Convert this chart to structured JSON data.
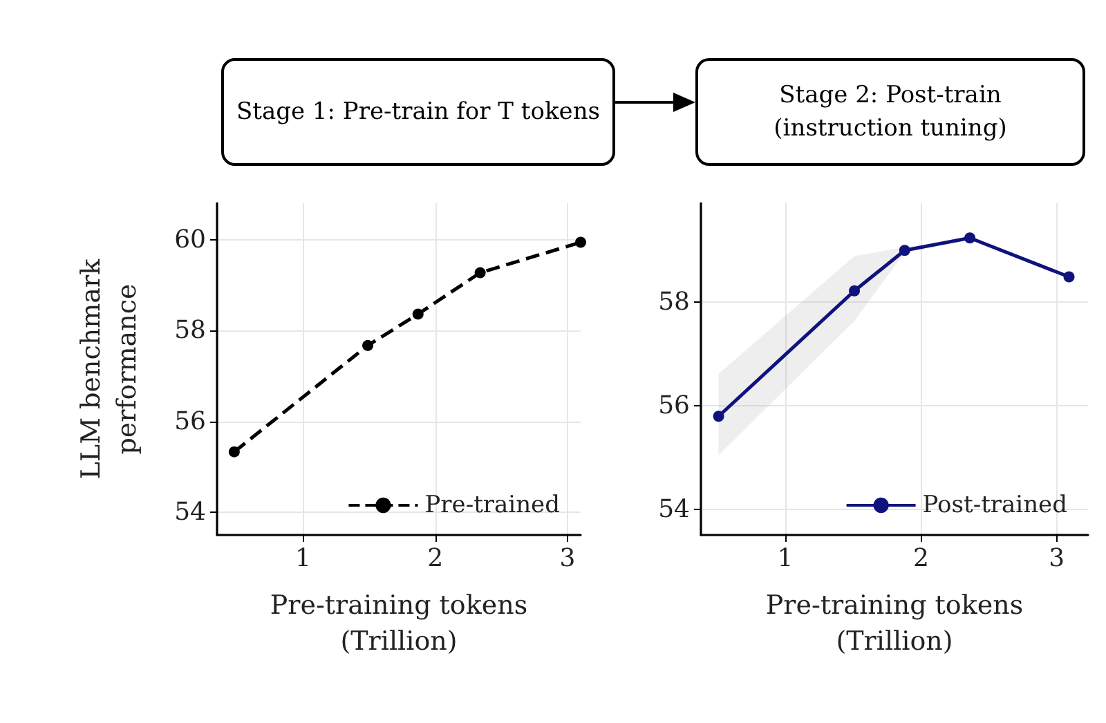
{
  "chart_data": [
    {
      "type": "line",
      "annotations": [
        "Stage 1: Pre-train for T tokens"
      ],
      "xlabel": "Pre-training tokens\n(Trillion)",
      "ylabel": "LLM benchmark\nperformance",
      "xlim": [
        0.35,
        3.1
      ],
      "xticks": [
        1,
        2,
        3
      ],
      "ylim": [
        53.5,
        60.8
      ],
      "yticks": [
        54,
        56,
        58,
        60
      ],
      "grid": true,
      "legend": "bottom right",
      "marker": "circle",
      "series": [
        {
          "name": "Pre-trained",
          "color": "#000000",
          "line_style": "dashed",
          "x": [
            0.48,
            1.49,
            1.87,
            2.34,
            3.1
          ],
          "values": [
            55.33,
            57.67,
            58.36,
            59.27,
            59.94
          ]
        }
      ]
    },
    {
      "type": "line",
      "annotations": [
        "Stage 2: Post-train (instruction tuning)"
      ],
      "xlabel": "Pre-training tokens\n(Trillion)",
      "xlim": [
        0.38,
        3.23
      ],
      "xticks": [
        1,
        2,
        3
      ],
      "ylim": [
        53.5,
        59.9
      ],
      "yticks": [
        54,
        56,
        58
      ],
      "grid": true,
      "legend": "bottom right",
      "marker": "circle",
      "series": [
        {
          "name": "Post-trained",
          "color": "#10127d",
          "line_style": "solid",
          "x": [
            0.51,
            1.51,
            1.88,
            2.36,
            3.09
          ],
          "values": [
            55.79,
            58.21,
            58.99,
            59.23,
            58.48
          ],
          "lower": [
            55.04,
            57.63,
            58.95,
            59.23,
            58.48
          ],
          "upper": [
            56.61,
            58.88,
            59.05,
            59.23,
            58.48
          ]
        }
      ]
    }
  ]
}
